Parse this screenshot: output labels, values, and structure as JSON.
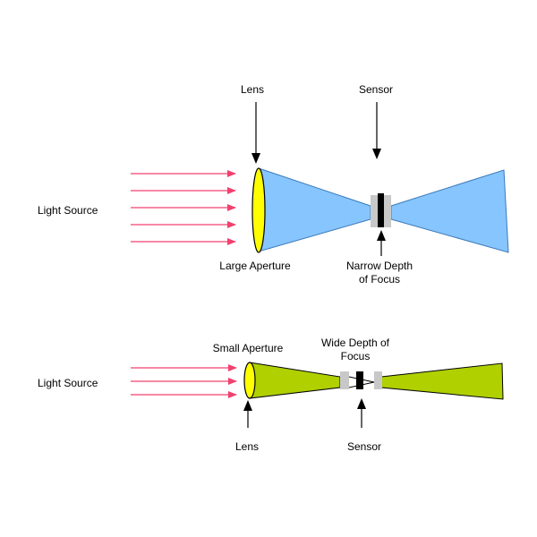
{
  "colors": {
    "ray": "#f2406f",
    "lens_fill": "#ffff00",
    "top_cone": "#87c5ff",
    "bottom_cone": "#b0d000",
    "focus_zone": "#c8c8c8",
    "sensor": "#000000"
  },
  "top_diagram": {
    "light_source_label": "Light Source",
    "lens_label": "Lens",
    "sensor_label": "Sensor",
    "aperture_label": "Large Aperture",
    "depth_label_line1": "Narrow Depth",
    "depth_label_line2": "of Focus"
  },
  "bottom_diagram": {
    "light_source_label": "Light Source",
    "lens_label": "Lens",
    "sensor_label": "Sensor",
    "aperture_label": "Small Aperture",
    "depth_label_line1": "Wide Depth of",
    "depth_label_line2": "Focus"
  }
}
